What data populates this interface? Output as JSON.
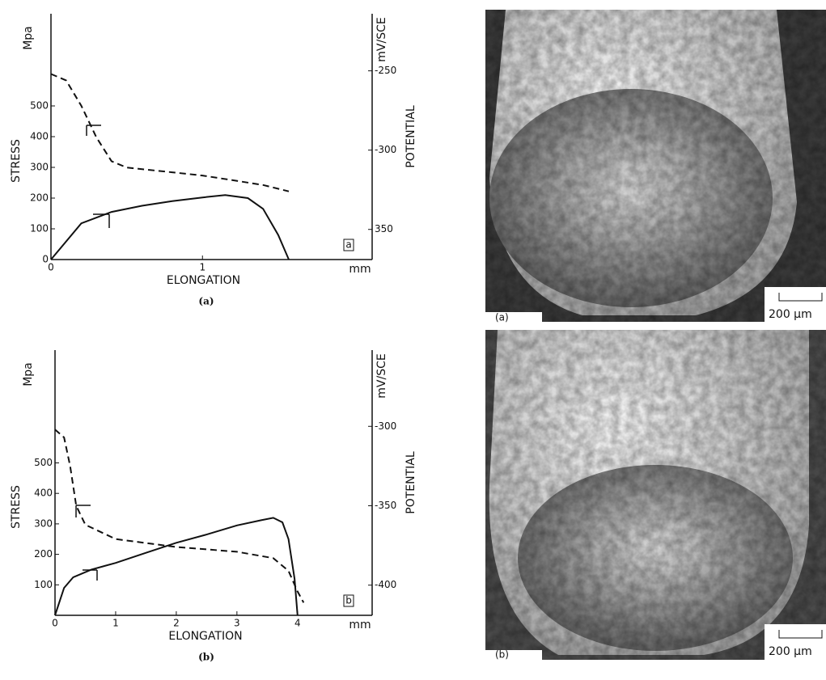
{
  "chart_data": [
    {
      "type": "line",
      "caption": "(a)",
      "panel_label": "a",
      "x_label": "ELONGATION",
      "x_unit": "mm",
      "y_label": "STRESS",
      "y_unit": "Mpa",
      "y2_label": "POTENTIAL",
      "y2_unit": "mV/SCE",
      "xlim": [
        0,
        2.12
      ],
      "xticks": [
        0,
        1
      ],
      "ylim": [
        0,
        800
      ],
      "yticks": [
        0,
        100,
        200,
        300,
        400,
        500
      ],
      "y2lim": [
        -369,
        -214
      ],
      "y2ticks": [
        -250,
        -300,
        {
          "value": -350,
          "label": "350"
        }
      ],
      "series": [
        {
          "color": "#111111",
          "line_style": "solid",
          "x": [
            0,
            0.2,
            0.4,
            0.6,
            0.8,
            1.0,
            1.15,
            1.3,
            1.4,
            1.5,
            1.57
          ],
          "values": [
            0,
            118,
            155,
            175,
            190,
            202,
            210,
            200,
            165,
            80,
            0
          ]
        },
        {
          "color": "#111111",
          "line_style": "dashed",
          "axis": "y2",
          "x": [
            0,
            0.1,
            0.2,
            0.3,
            0.4,
            0.5,
            0.8,
            1.0,
            1.2,
            1.4,
            1.57
          ],
          "values": [
            -252,
            -256,
            -272,
            -292,
            -307,
            -311,
            -314,
            -316,
            -319,
            -322,
            -326
          ]
        }
      ]
    },
    {
      "type": "line",
      "caption": "(b)",
      "panel_label": "b",
      "x_label": "ELONGATION",
      "x_unit": "mm",
      "y_label": "STRESS",
      "y_unit": "Mpa",
      "y2_label": "POTENTIAL",
      "y2_unit": "mV/SCE",
      "xlim": [
        0,
        5.23
      ],
      "xticks": [
        0,
        1,
        2,
        3,
        4
      ],
      "ylim": [
        0,
        870
      ],
      "yticks": [
        100,
        200,
        300,
        400,
        500
      ],
      "y2lim": [
        -419,
        -252
      ],
      "y2ticks": [
        -300,
        -350,
        -400
      ],
      "series": [
        {
          "color": "#111111",
          "line_style": "solid",
          "x": [
            0,
            0.15,
            0.3,
            0.6,
            1,
            1.5,
            2,
            2.5,
            3,
            3.4,
            3.6,
            3.75,
            3.85,
            3.95,
            4.0
          ],
          "values": [
            0,
            90,
            125,
            150,
            172,
            205,
            238,
            265,
            295,
            312,
            320,
            305,
            250,
            120,
            0
          ]
        },
        {
          "color": "#111111",
          "line_style": "dashed",
          "axis": "y2",
          "x": [
            0,
            0.15,
            0.25,
            0.35,
            0.5,
            1,
            2,
            3,
            3.6,
            3.85,
            4.0,
            4.1
          ],
          "values": [
            -302,
            -307,
            -325,
            -350,
            -362,
            -371,
            -376,
            -379,
            -383,
            -391,
            -404,
            -411
          ]
        }
      ]
    }
  ],
  "photos": [
    {
      "label": "(a)",
      "scale": "200 μm"
    },
    {
      "label": "(b)",
      "scale": "200 μm"
    }
  ]
}
